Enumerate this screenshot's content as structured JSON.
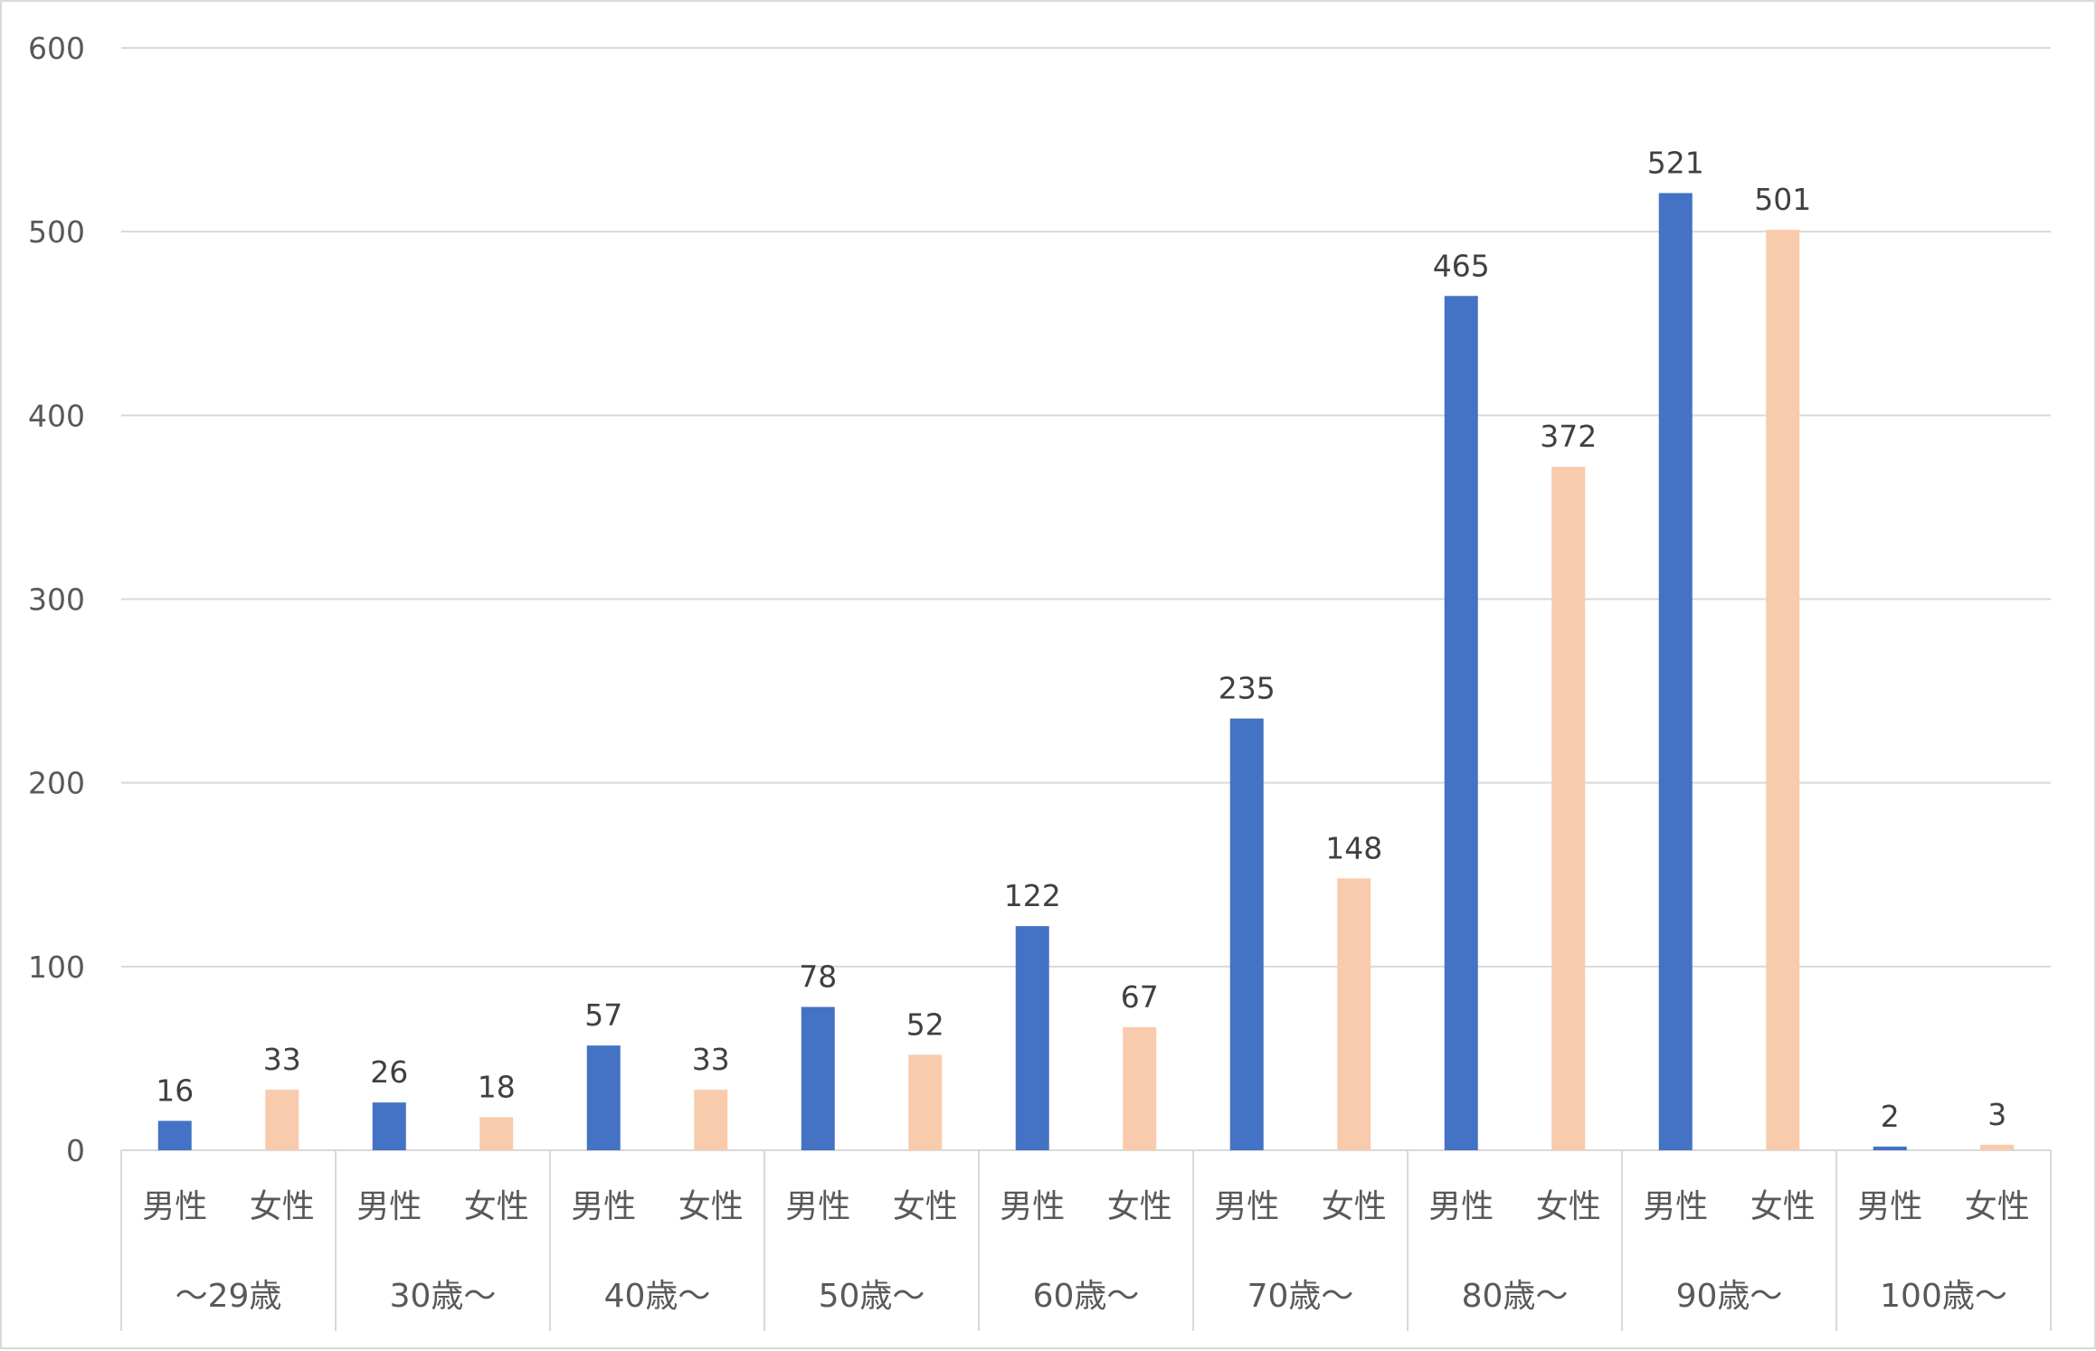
{
  "chart_data": {
    "type": "bar",
    "title": "",
    "xlabel": "",
    "ylabel": "",
    "ylim": [
      0,
      600
    ],
    "y_ticks": [
      "0",
      "100",
      "200",
      "300",
      "400",
      "500",
      "600"
    ],
    "grid": true,
    "legend": "none",
    "categories": [
      "～29歳",
      "30歳～",
      "40歳～",
      "50歳～",
      "60歳～",
      "70歳～",
      "80歳～",
      "90歳～",
      "100歳～"
    ],
    "sub_categories": [
      "男性",
      "女性"
    ],
    "series": [
      {
        "values": [
          16,
          26,
          57,
          78,
          122,
          235,
          465,
          521,
          2
        ]
      },
      {
        "values": [
          33,
          18,
          33,
          52,
          67,
          148,
          372,
          501,
          3
        ]
      }
    ],
    "colors": [
      "#4472C4",
      "#F8CBAD"
    ],
    "data_labels": true
  }
}
